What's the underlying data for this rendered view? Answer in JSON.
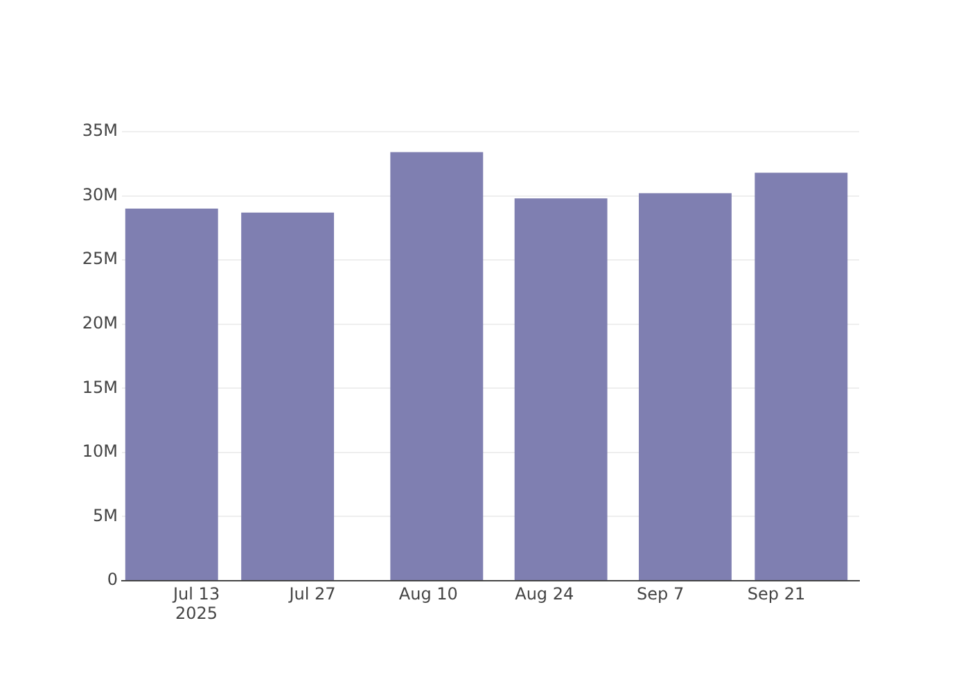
{
  "chart_data": {
    "type": "bar",
    "x": [
      "2025-07-10",
      "2025-07-24",
      "2025-08-11",
      "2025-08-26",
      "2025-09-10",
      "2025-09-24"
    ],
    "values": [
      29000000,
      28700000,
      33400000,
      29800000,
      30200000,
      31800000
    ],
    "color": "#7f7fb1",
    "xlim": [
      "2025-07-04",
      "2025-10-01"
    ],
    "xticks": [
      {
        "value": "2025-07-13",
        "label": "Jul 13\n2025"
      },
      {
        "value": "2025-07-27",
        "label": "Jul 27"
      },
      {
        "value": "2025-08-10",
        "label": "Aug 10"
      },
      {
        "value": "2025-08-24",
        "label": "Aug 24"
      },
      {
        "value": "2025-09-07",
        "label": "Sep 7"
      },
      {
        "value": "2025-09-21",
        "label": "Sep 21"
      }
    ],
    "ylim": [
      0,
      35000000
    ],
    "yticks": [
      0,
      {
        "value": 5000000,
        "label": "5M"
      },
      {
        "value": 10000000,
        "label": "10M"
      },
      {
        "value": 15000000,
        "label": "15M"
      },
      {
        "value": 20000000,
        "label": "20M"
      },
      {
        "value": 25000000,
        "label": "25M"
      },
      {
        "value": 30000000,
        "label": "30M"
      },
      {
        "value": 35000000,
        "label": "35M"
      }
    ],
    "grid": "y",
    "legend": false
  }
}
